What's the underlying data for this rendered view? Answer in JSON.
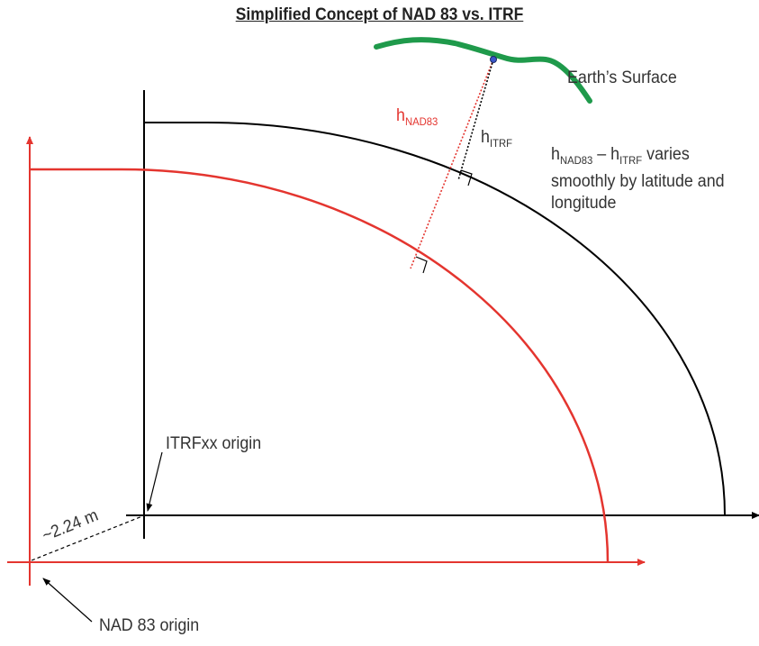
{
  "title": "Simplified Concept of NAD 83 vs. ITRF",
  "labels": {
    "earth_surface": "Earth’s Surface",
    "h_nad83_base": "h",
    "h_nad83_sub": "NAD83",
    "h_itrf_base": "h",
    "h_itrf_sub": "ITRF",
    "note_h1": "h",
    "note_sub1": "NAD83",
    "note_dash": " – h",
    "note_sub2": "ITRF",
    "note_rest": " varies smoothly by latitude and longitude",
    "itrf_origin": "ITRFxx origin",
    "nad83_origin": "NAD 83 origin",
    "offset": "~2.24 m"
  },
  "colors": {
    "itrf": "#000000",
    "nad83": "#e4352f",
    "surface": "#1f9a4b",
    "point": "#3a56c8"
  }
}
